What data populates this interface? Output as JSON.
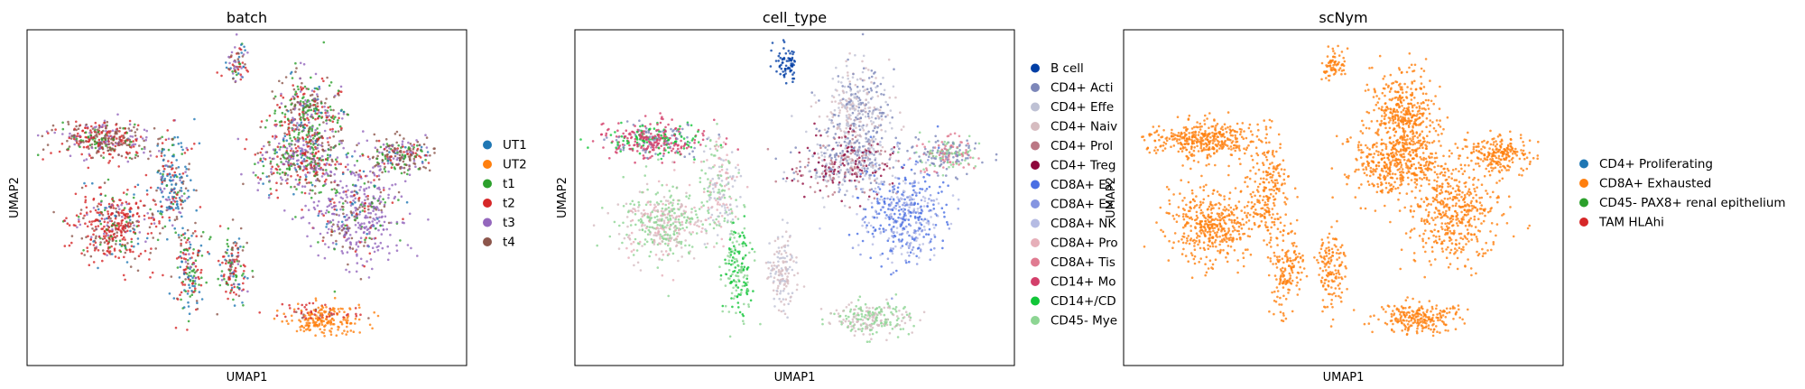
{
  "chart_data": [
    {
      "type": "scatter",
      "title": "batch",
      "xlabel": "UMAP1",
      "ylabel": "UMAP2",
      "grid": false,
      "legend": "right",
      "series": [
        {
          "name": "UT1",
          "color": "#1f77b4"
        },
        {
          "name": "UT2",
          "color": "#ff7f0e"
        },
        {
          "name": "t1",
          "color": "#2ca02c"
        },
        {
          "name": "t2",
          "color": "#d62728"
        },
        {
          "name": "t3",
          "color": "#9467bd"
        },
        {
          "name": "t4",
          "color": "#8c564b"
        }
      ]
    },
    {
      "type": "scatter",
      "title": "cell_type",
      "xlabel": "UMAP1",
      "ylabel": "UMAP2",
      "grid": false,
      "legend": "right",
      "series": [
        {
          "name": "B cell",
          "color": "#023fa5"
        },
        {
          "name": "CD4+ Acti",
          "color": "#7d87b9"
        },
        {
          "name": "CD4+ Effe",
          "color": "#bec1d4"
        },
        {
          "name": "CD4+ Naiv",
          "color": "#d6bcc0"
        },
        {
          "name": "CD4+ Prol",
          "color": "#bb7784"
        },
        {
          "name": "CD4+ Treg",
          "color": "#8e063b"
        },
        {
          "name": "CD8A+ Ex",
          "color": "#4a6fe3"
        },
        {
          "name": "CD8A+ Ex",
          "color": "#8595e1"
        },
        {
          "name": "CD8A+ NK",
          "color": "#b5bbe3"
        },
        {
          "name": "CD8A+ Pro",
          "color": "#e6afb9"
        },
        {
          "name": "CD8A+ Tis",
          "color": "#e07b91"
        },
        {
          "name": "CD14+ Mo",
          "color": "#d33f6a"
        },
        {
          "name": "CD14+/CD",
          "color": "#11c638"
        },
        {
          "name": "CD45- Mye",
          "color": "#8dd593"
        }
      ]
    },
    {
      "type": "scatter",
      "title": "scNym",
      "xlabel": "UMAP1",
      "ylabel": "UMAP2",
      "grid": false,
      "legend": "right",
      "series": [
        {
          "name": "CD4+ Proliferating",
          "color": "#1f77b4"
        },
        {
          "name": "CD8A+ Exhausted",
          "color": "#ff7f0e"
        },
        {
          "name": "CD45- PAX8+ renal epithelium",
          "color": "#2ca02c"
        },
        {
          "name": "TAM HLAhi",
          "color": "#d62728"
        }
      ]
    }
  ]
}
